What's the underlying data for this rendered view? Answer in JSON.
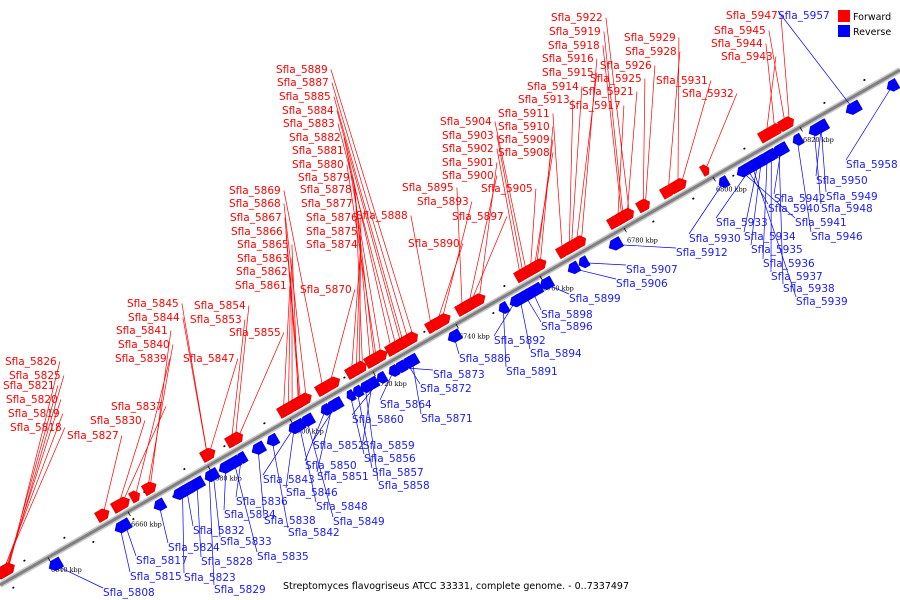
{
  "caption": "Streptomyces flavogriseus ATCC 33331, complete genome. - 0..7337497",
  "legend": [
    {
      "label": "Forward",
      "color": "#ff0000"
    },
    {
      "label": "Reverse",
      "color": "#0000ff"
    }
  ],
  "colors": {
    "forward": "#ff0000",
    "reverse": "#0000ff",
    "forward_text": "#ff0000",
    "reverse_text": "#1a1aff",
    "axis": "#808080"
  },
  "scale_ticks": [
    "6640 kbp",
    "6660 kbp",
    "6680 kbp",
    "6700 kbp",
    "6720 kbp",
    "6740 kbp",
    "6760 kbp",
    "6780 kbp",
    "6800 kbp",
    "6820 kbp"
  ],
  "forward_genes": [
    "Sfla_5818",
    "Sfla_5819",
    "Sfla_5820",
    "Sfla_5821",
    "Sfla_5825",
    "Sfla_5826",
    "Sfla_5827",
    "Sfla_5830",
    "Sfla_5837",
    "Sfla_5839",
    "Sfla_5840",
    "Sfla_5841",
    "Sfla_5844",
    "Sfla_5845",
    "Sfla_5847",
    "Sfla_5853",
    "Sfla_5854",
    "Sfla_5855",
    "Sfla_5861",
    "Sfla_5862",
    "Sfla_5863",
    "Sfla_5865",
    "Sfla_5866",
    "Sfla_5867",
    "Sfla_5868",
    "Sfla_5869",
    "Sfla_5870",
    "Sfla_5874",
    "Sfla_5875",
    "Sfla_5876",
    "Sfla_5877",
    "Sfla_5878",
    "Sfla_5879",
    "Sfla_5880",
    "Sfla_5881",
    "Sfla_5882",
    "Sfla_5883",
    "Sfla_5884",
    "Sfla_5885",
    "Sfla_5887",
    "Sfla_5889",
    "Sfla_5888",
    "Sfla_5890",
    "Sfla_5893",
    "Sfla_5895",
    "Sfla_5897",
    "Sfla_5900",
    "Sfla_5901",
    "Sfla_5902",
    "Sfla_5903",
    "Sfla_5904",
    "Sfla_5905",
    "Sfla_5908",
    "Sfla_5909",
    "Sfla_5910",
    "Sfla_5911",
    "Sfla_5913",
    "Sfla_5914",
    "Sfla_5915",
    "Sfla_5916",
    "Sfla_5917",
    "Sfla_5918",
    "Sfla_5919",
    "Sfla_5921",
    "Sfla_5922",
    "Sfla_5925",
    "Sfla_5926",
    "Sfla_5928",
    "Sfla_5929",
    "Sfla_5931",
    "Sfla_5932",
    "Sfla_5943",
    "Sfla_5944",
    "Sfla_5945",
    "Sfla_5947"
  ],
  "reverse_genes": [
    "Sfla_5808",
    "Sfla_5815",
    "Sfla_5817",
    "Sfla_5823",
    "Sfla_5824",
    "Sfla_5828",
    "Sfla_5829",
    "Sfla_5832",
    "Sfla_5833",
    "Sfla_5834",
    "Sfla_5835",
    "Sfla_5836",
    "Sfla_5838",
    "Sfla_5842",
    "Sfla_5843",
    "Sfla_5846",
    "Sfla_5848",
    "Sfla_5849",
    "Sfla_5850",
    "Sfla_5851",
    "Sfla_5852",
    "Sfla_5856",
    "Sfla_5857",
    "Sfla_5858",
    "Sfla_5859",
    "Sfla_5860",
    "Sfla_5864",
    "Sfla_5871",
    "Sfla_5872",
    "Sfla_5873",
    "Sfla_5886",
    "Sfla_5891",
    "Sfla_5892",
    "Sfla_5894",
    "Sfla_5896",
    "Sfla_5898",
    "Sfla_5899",
    "Sfla_5906",
    "Sfla_5907",
    "Sfla_5912",
    "Sfla_5930",
    "Sfla_5933",
    "Sfla_5934",
    "Sfla_5935",
    "Sfla_5936",
    "Sfla_5937",
    "Sfla_5938",
    "Sfla_5939",
    "Sfla_5940",
    "Sfla_5941",
    "Sfla_5942",
    "Sfla_5946",
    "Sfla_5948",
    "Sfla_5949",
    "Sfla_5950",
    "Sfla_5957",
    "Sfla_5958"
  ]
}
